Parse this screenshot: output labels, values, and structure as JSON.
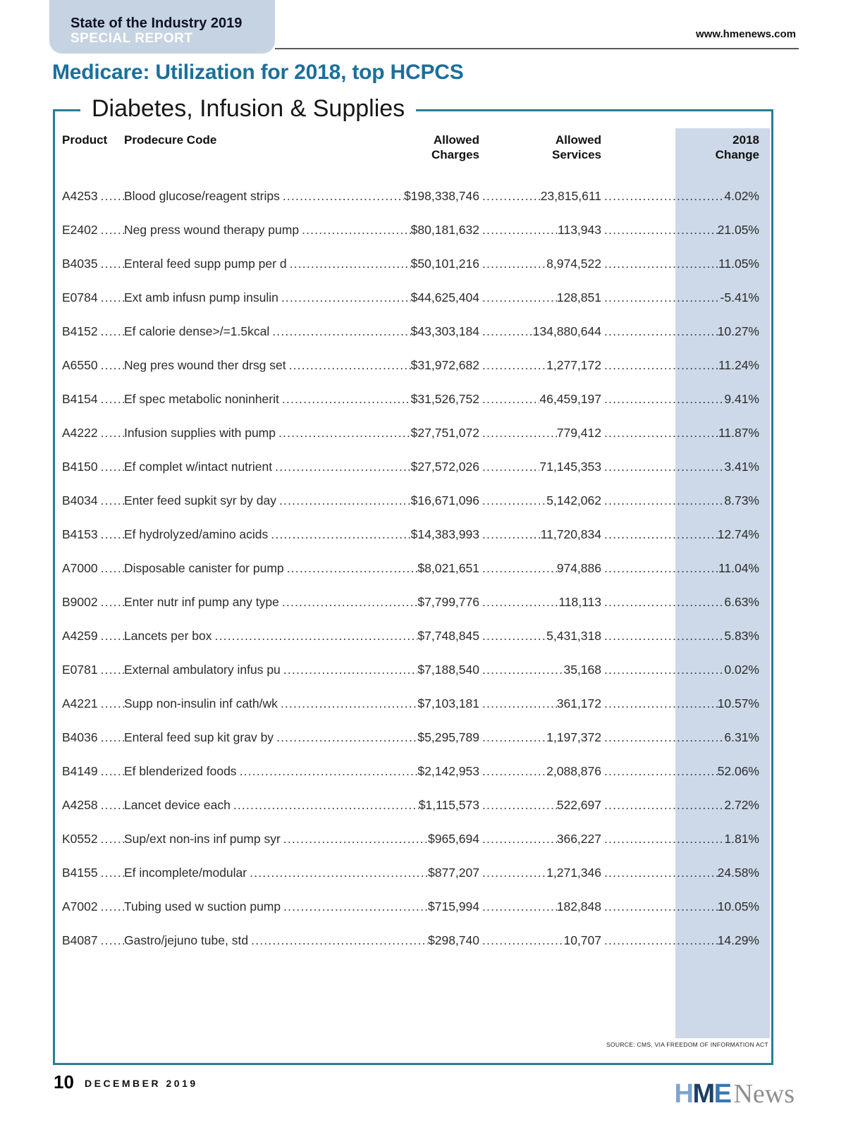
{
  "header": {
    "badge_line1": "State of the Industry 2019",
    "badge_line2": "SPECIAL REPORT",
    "website": "www.hmenews.com",
    "title": "Medicare: Utilization for 2018, top HCPCS"
  },
  "table": {
    "section_title": "Diabetes, Infusion & Supplies",
    "columns": {
      "product": "Product",
      "code": "Prodecure Code",
      "charges_line1": "Allowed",
      "charges_line2": "Charges",
      "services_line1": "Allowed",
      "services_line2": "Services",
      "change_line1": "2018",
      "change_line2": "Change"
    },
    "rows": [
      {
        "product": "A4253",
        "description": "Blood glucose/reagent strips",
        "charges": "$198,338,746",
        "services": "23,815,611",
        "change": "4.02%"
      },
      {
        "product": "E2402",
        "description": "Neg press wound therapy pump",
        "charges": "$80,181,632",
        "services": "113,943",
        "change": "21.05%"
      },
      {
        "product": "B4035",
        "description": "Enteral feed supp pump per d",
        "charges": "$50,101,216",
        "services": "8,974,522",
        "change": "11.05%"
      },
      {
        "product": "E0784",
        "description": "Ext amb infusn pump insulin",
        "charges": "$44,625,404",
        "services": "128,851",
        "change": "-5.41%"
      },
      {
        "product": "B4152",
        "description": "Ef calorie dense>/=1.5kcal",
        "charges": "$43,303,184",
        "services": "134,880,644",
        "change": "10.27%"
      },
      {
        "product": "A6550",
        "description": "Neg pres wound ther drsg set",
        "charges": "$31,972,682",
        "services": "1,277,172",
        "change": "11.24%"
      },
      {
        "product": "B4154",
        "description": "Ef spec metabolic noninherit",
        "charges": "$31,526,752",
        "services": "46,459,197",
        "change": "9.41%"
      },
      {
        "product": "A4222",
        "description": "Infusion supplies with pump",
        "charges": "$27,751,072",
        "services": "779,412",
        "change": "11.87%"
      },
      {
        "product": "B4150",
        "description": "Ef complet w/intact nutrient",
        "charges": "$27,572,026",
        "services": "71,145,353",
        "change": "3.41%"
      },
      {
        "product": "B4034",
        "description": "Enter feed supkit syr by day",
        "charges": "$16,671,096",
        "services": "5,142,062",
        "change": "8.73%"
      },
      {
        "product": "B4153",
        "description": "Ef hydrolyzed/amino acids",
        "charges": "$14,383,993",
        "services": "11,720,834",
        "change": "12.74%"
      },
      {
        "product": "A7000",
        "description": "Disposable canister for pump",
        "charges": "$8,021,651",
        "services": "974,886",
        "change": "11.04%"
      },
      {
        "product": "B9002",
        "description": "Enter nutr inf pump any type",
        "charges": "$7,799,776",
        "services": "118,113",
        "change": "6.63%"
      },
      {
        "product": "A4259",
        "description": "Lancets per box",
        "charges": "$7,748,845",
        "services": "5,431,318",
        "change": "5.83%"
      },
      {
        "product": "E0781",
        "description": "External ambulatory infus pu",
        "charges": "$7,188,540",
        "services": "35,168",
        "change": "0.02%"
      },
      {
        "product": "A4221",
        "description": "Supp non-insulin inf cath/wk",
        "charges": "$7,103,181",
        "services": "361,172",
        "change": "10.57%"
      },
      {
        "product": "B4036",
        "description": "Enteral feed sup kit grav by",
        "charges": "$5,295,789",
        "services": "1,197,372",
        "change": "6.31%"
      },
      {
        "product": "B4149",
        "description": "Ef blenderized foods",
        "charges": "$2,142,953",
        "services": "2,088,876",
        "change": "52.06%"
      },
      {
        "product": "A4258",
        "description": "Lancet device each",
        "charges": "$1,115,573",
        "services": "522,697",
        "change": "2.72%"
      },
      {
        "product": "K0552",
        "description": "Sup/ext non-ins inf pump syr",
        "charges": "$965,694",
        "services": "366,227",
        "change": "1.81%"
      },
      {
        "product": "B4155",
        "description": "Ef incomplete/modular",
        "charges": "$877,207",
        "services": "1,271,346",
        "change": "24.58%"
      },
      {
        "product": "A7002",
        "description": "Tubing used w suction pump",
        "charges": "$715,994",
        "services": "182,848",
        "change": "10.05%"
      },
      {
        "product": "B4087",
        "description": "Gastro/jejuno tube, std",
        "charges": "$298,740",
        "services": "10,707",
        "change": "14.29%"
      }
    ],
    "source": "SOURCE: CMS, VIA FREEDOM OF INFORMATION ACT"
  },
  "footer": {
    "page_number": "10",
    "issue_date": "DECEMBER 2019",
    "logo": {
      "letter_h": "H",
      "letter_m": "M",
      "letter_e": "E",
      "news": "News"
    }
  },
  "colors": {
    "frame_teal": "#2c7d93",
    "heading_blue": "#1b6f9b",
    "badge_background": "#c6d3e3",
    "highlight_column": "#cdd9e8",
    "logo_h": "#7ea4cd",
    "logo_m": "#1c3f66",
    "logo_e": "#3a77b2",
    "logo_news_gray": "#8f8f8f"
  }
}
